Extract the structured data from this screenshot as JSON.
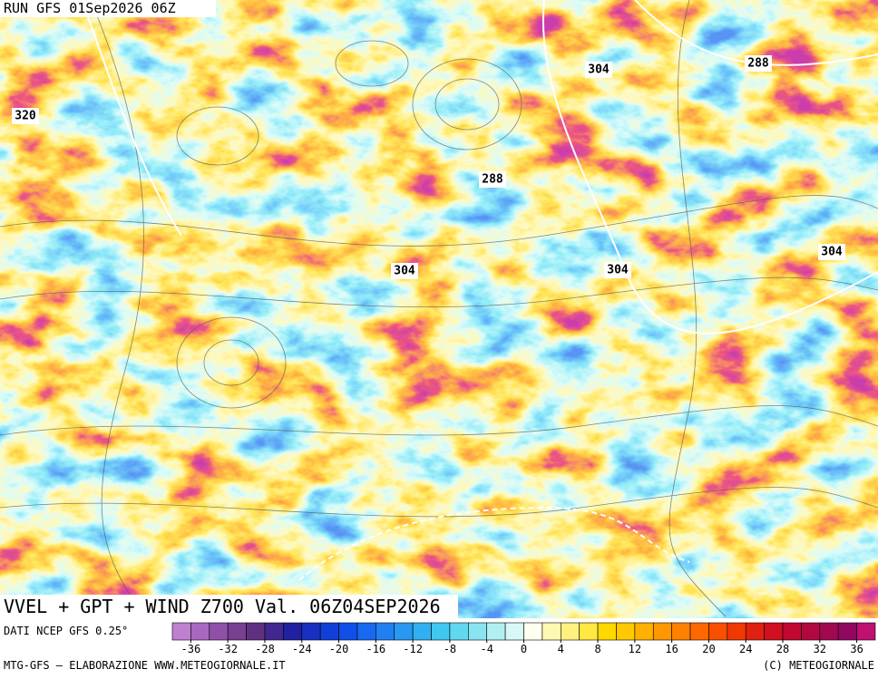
{
  "header": {
    "run": "RUN GFS 01Sep2026 06Z"
  },
  "map": {
    "contour_labels": [
      "304",
      "288",
      "320",
      "288",
      "304",
      "304",
      "304"
    ]
  },
  "footer": {
    "title": "VVEL + GPT + WIND Z700 Val. 06Z04SEP2026",
    "source": "DATI NCEP GFS 0.25°",
    "credit": "MTG-GFS — ELABORAZIONE WWW.METEOGIORNALE.IT",
    "copyright": "(C) METEOGIORNALE"
  },
  "colorbar": {
    "lim": [
      -38,
      38
    ],
    "ticks": [
      -36,
      -32,
      -28,
      -24,
      -20,
      -16,
      -12,
      -8,
      -4,
      0,
      4,
      8,
      12,
      16,
      20,
      24,
      28,
      32,
      36
    ],
    "colors": [
      "#c080d0",
      "#a868c0",
      "#9050a8",
      "#784090",
      "#603080",
      "#402890",
      "#2020a0",
      "#1830c0",
      "#1040d8",
      "#1050e8",
      "#1868f0",
      "#2080f0",
      "#2898f0",
      "#30b0f0",
      "#40c8f0",
      "#60d8f0",
      "#88e4f0",
      "#b0f0f0",
      "#d8f8f8",
      "#fffff0",
      "#fff8b0",
      "#fff080",
      "#ffe840",
      "#ffd800",
      "#ffc800",
      "#ffb000",
      "#ff9800",
      "#ff8000",
      "#ff6800",
      "#f85000",
      "#f03800",
      "#e02010",
      "#d01020",
      "#c00830",
      "#b00840",
      "#a00850",
      "#900860",
      "#c01070"
    ]
  }
}
